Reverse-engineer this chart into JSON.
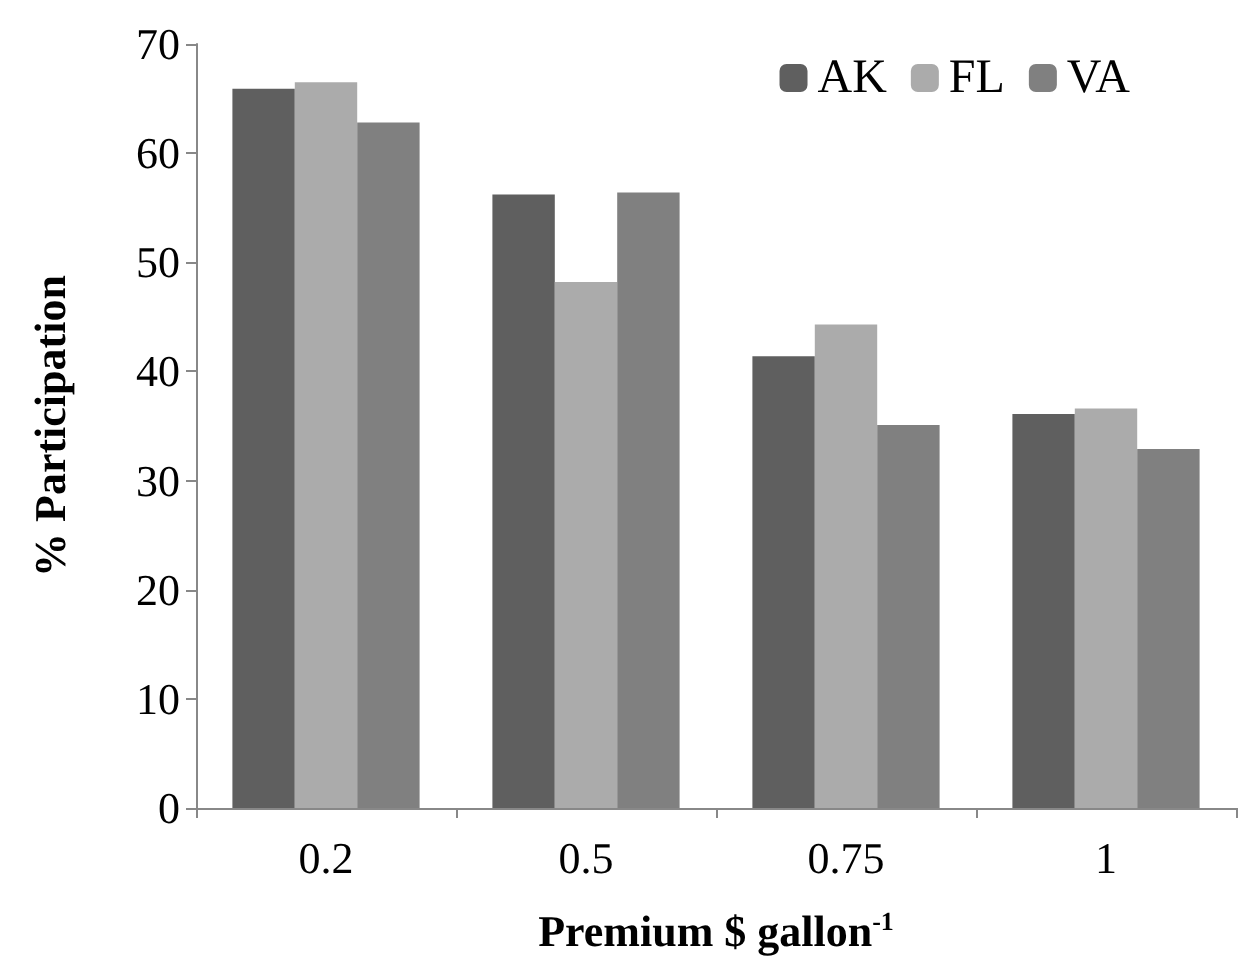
{
  "chart_data": {
    "type": "bar",
    "xlabel": "Premium $ gallon$^{-1}$",
    "ylabel": "% Participation",
    "categories": [
      "0.2",
      "0.5",
      "0.75",
      "1"
    ],
    "series": [
      {
        "name": "AK",
        "color": "#5f5f5f",
        "values": [
          65.9,
          56.2,
          41.4,
          36.1
        ]
      },
      {
        "name": "FL",
        "color": "#ababab",
        "values": [
          66.5,
          48.2,
          44.3,
          36.6
        ]
      },
      {
        "name": "VA",
        "color": "#808080",
        "values": [
          62.8,
          56.4,
          35.1,
          32.9
        ]
      }
    ],
    "ylim": [
      0,
      70
    ],
    "yticks": [
      0,
      10,
      20,
      30,
      40,
      50,
      60,
      70
    ],
    "grid": false,
    "legend": "top right"
  }
}
